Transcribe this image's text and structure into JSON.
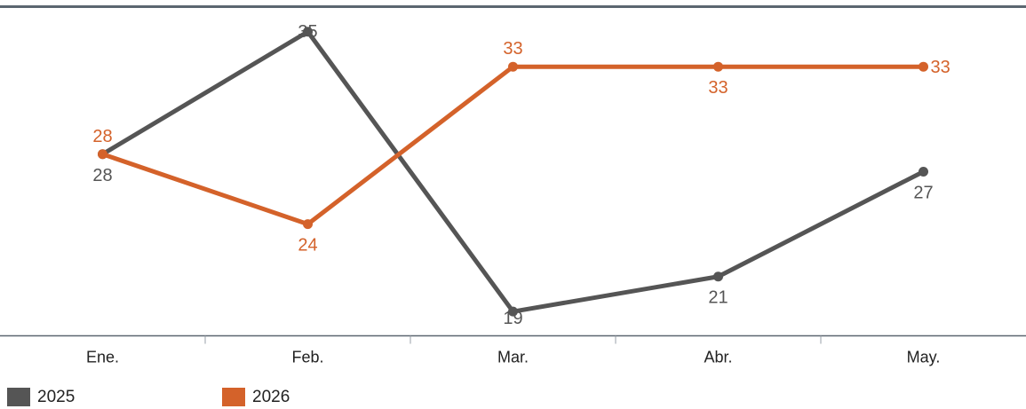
{
  "chart_data": {
    "type": "line",
    "categories": [
      "Ene.",
      "Feb.",
      "Mar.",
      "Abr.",
      "May."
    ],
    "series": [
      {
        "name": "2025",
        "values": [
          28,
          35,
          19,
          21,
          27
        ],
        "color": "#555555"
      },
      {
        "name": "2026",
        "values": [
          28,
          24,
          33,
          33,
          33
        ],
        "color": "#d4622a"
      }
    ],
    "ylim": [
      18.4,
      35.8
    ],
    "title": "",
    "xlabel": "",
    "ylabel": "",
    "grid": false,
    "legend_position": "bottom-left"
  }
}
